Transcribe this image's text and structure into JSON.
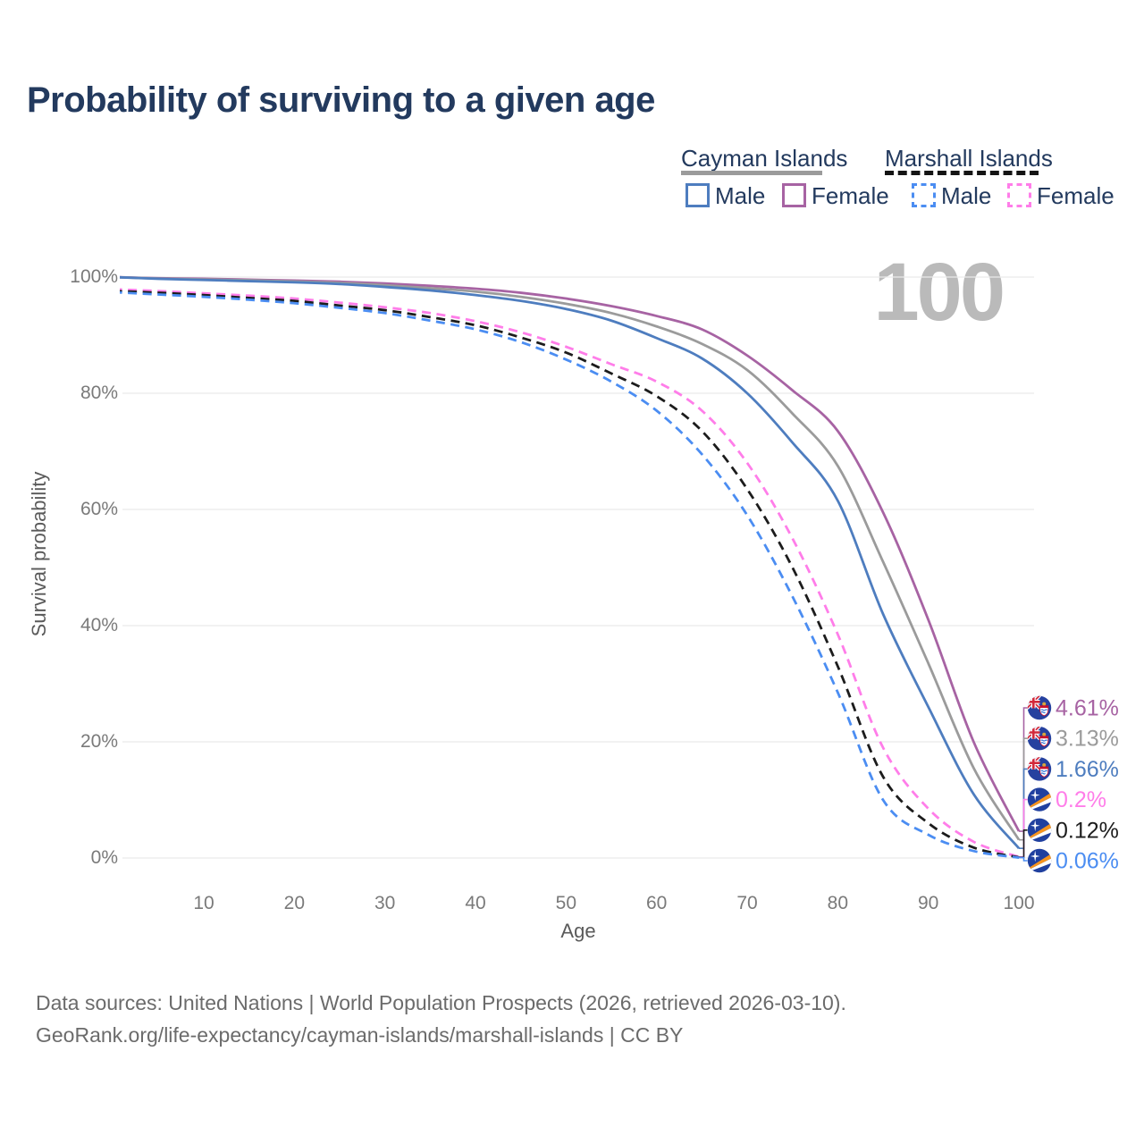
{
  "title": "Probability of surviving to a given age",
  "age_counter": "100",
  "legend": {
    "groups": [
      {
        "name": "Cayman Islands",
        "line_style": "solid",
        "underline_color": "#9B9B9B",
        "items": [
          {
            "label": "Male",
            "color": "#4E7DBF"
          },
          {
            "label": "Female",
            "color": "#A763A3"
          }
        ]
      },
      {
        "name": "Marshall Islands",
        "line_style": "dashed",
        "underline_color": "#141414",
        "items": [
          {
            "label": "Male",
            "color": "#4B8DF2"
          },
          {
            "label": "Female",
            "color": "#FF7DE9"
          }
        ]
      }
    ]
  },
  "chart_data": {
    "type": "line",
    "title": "Probability of surviving to a given age",
    "xlabel": "Age",
    "ylabel": "Survival probability",
    "xlim": [
      0,
      100
    ],
    "ylim": [
      0,
      100
    ],
    "grid": "horizontal",
    "x_ticks": [
      "10",
      "20",
      "30",
      "40",
      "50",
      "60",
      "70",
      "80",
      "90",
      "100"
    ],
    "y_ticks": [
      "100%",
      "80%",
      "60%",
      "40%",
      "20%",
      "0%"
    ],
    "x": [
      0,
      5,
      10,
      15,
      20,
      25,
      30,
      35,
      40,
      45,
      50,
      55,
      60,
      65,
      70,
      75,
      80,
      85,
      90,
      95,
      100
    ],
    "series": [
      {
        "id": "cayman-female",
        "country": "Cayman Islands",
        "sex": "Female",
        "flag": "flag-cayman",
        "color": "#A763A3",
        "dash": false,
        "end_label": "4.61%",
        "values": [
          100,
          99.8,
          99.7,
          99.55,
          99.4,
          99.2,
          98.9,
          98.5,
          98.0,
          97.3,
          96.3,
          95.0,
          93.3,
          91.0,
          86.5,
          80.5,
          73.5,
          59.5,
          41.0,
          20.0,
          4.61
        ]
      },
      {
        "id": "cayman-both-sexes",
        "country": "Cayman Islands",
        "sex": "Both sexes",
        "flag": "flag-cayman",
        "color": "#9B9B9B",
        "dash": false,
        "end_label": "3.13%",
        "values": [
          100,
          99.75,
          99.6,
          99.45,
          99.25,
          99.0,
          98.6,
          98.1,
          97.5,
          96.6,
          95.4,
          93.8,
          91.5,
          88.5,
          84.0,
          76.5,
          67.5,
          51.0,
          33.5,
          15.5,
          3.13
        ]
      },
      {
        "id": "cayman-male",
        "country": "Cayman Islands",
        "sex": "Male",
        "flag": "flag-cayman",
        "color": "#4E7DBF",
        "dash": false,
        "end_label": "1.66%",
        "values": [
          100,
          99.7,
          99.5,
          99.3,
          99.1,
          98.8,
          98.3,
          97.7,
          96.9,
          95.9,
          94.5,
          92.5,
          89.5,
          86.0,
          80.0,
          71.5,
          61.5,
          42.0,
          26.0,
          11.0,
          1.66
        ]
      },
      {
        "id": "marshall-female",
        "country": "Marshall Islands",
        "sex": "Female",
        "flag": "flag-marshall",
        "color": "#FF7DE9",
        "dash": true,
        "end_label": "0.2%",
        "values": [
          97.9,
          97.6,
          97.2,
          96.8,
          96.3,
          95.6,
          94.8,
          93.8,
          92.4,
          90.5,
          88.0,
          85.0,
          82.0,
          77.0,
          68.0,
          55.0,
          38.5,
          19.0,
          8.5,
          2.8,
          0.2
        ]
      },
      {
        "id": "marshall-both-sexes",
        "country": "Marshall Islands",
        "sex": "Both sexes",
        "flag": "flag-marshall",
        "color": "#1C1C1C",
        "dash": true,
        "end_label": "0.12%",
        "values": [
          97.6,
          97.3,
          96.9,
          96.4,
          95.9,
          95.1,
          94.3,
          93.1,
          91.7,
          89.6,
          87.0,
          83.4,
          79.5,
          73.5,
          63.5,
          50.0,
          33.0,
          14.0,
          6.0,
          1.8,
          0.12
        ]
      },
      {
        "id": "marshall-male",
        "country": "Marshall Islands",
        "sex": "Male",
        "flag": "flag-marshall",
        "color": "#4B8DF2",
        "dash": true,
        "end_label": "0.06%",
        "values": [
          97.4,
          97.0,
          96.6,
          96.1,
          95.5,
          94.7,
          93.8,
          92.5,
          91.0,
          88.8,
          85.8,
          82.0,
          77.0,
          69.5,
          59.0,
          45.0,
          28.5,
          10.0,
          4.0,
          1.2,
          0.06
        ]
      }
    ]
  },
  "footer": {
    "line1": "Data sources: United Nations | World Population Prospects (2026, retrieved 2026-03-10).",
    "line2": "GeoRank.org/life-expectancy/cayman-islands/marshall-islands | CC BY"
  }
}
